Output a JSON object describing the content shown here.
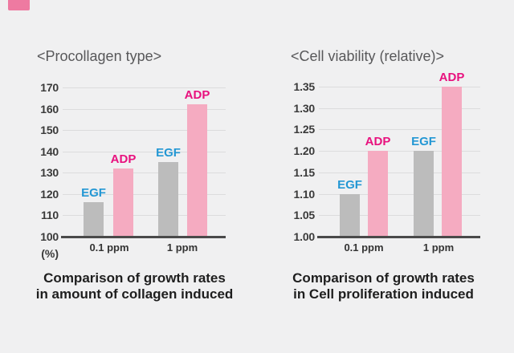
{
  "page": {
    "background_color": "#f0f0f1",
    "bookmark_color": "#ee7aa1"
  },
  "colors": {
    "grid_line": "#dcdcdd",
    "axis_line": "#4a4a4a",
    "tick_text": "#3a3a3a",
    "title_text": "#58585a",
    "caption_text": "#1e1e1e",
    "category_text": "#333333",
    "bar_gray": "#bcbcbc",
    "bar_pink": "#f5abc1",
    "egf_label": "#2397d4",
    "adp_label": "#e8117e"
  },
  "chart_data": [
    {
      "type": "bar",
      "title": "<Procollagen type>",
      "unit_label": "(%)",
      "categories": [
        "0.1 ppm",
        "1 ppm"
      ],
      "series": [
        {
          "name": "EGF",
          "values": [
            116,
            135
          ],
          "bar_color": "#bcbcbc",
          "label_color": "#2397d4"
        },
        {
          "name": "ADP",
          "values": [
            132,
            162
          ],
          "bar_color": "#f5abc1",
          "label_color": "#e8117e"
        }
      ],
      "ylim": [
        100,
        170
      ],
      "ytick_values": [
        100,
        110,
        120,
        130,
        140,
        150,
        160,
        170
      ],
      "ytick_labels": [
        "100",
        "110",
        "120",
        "130",
        "140",
        "150",
        "160",
        "170"
      ],
      "grid": true,
      "legend_position": "above-bars",
      "caption": [
        "Comparison of growth rates",
        "in amount of collagen induced"
      ]
    },
    {
      "type": "bar",
      "title": "<Cell viability (relative)>",
      "unit_label": "",
      "categories": [
        "0.1 ppm",
        "1 ppm"
      ],
      "series": [
        {
          "name": "EGF",
          "values": [
            1.1,
            1.2
          ],
          "bar_color": "#bcbcbc",
          "label_color": "#2397d4"
        },
        {
          "name": "ADP",
          "values": [
            1.2,
            1.35
          ],
          "bar_color": "#f5abc1",
          "label_color": "#e8117e"
        }
      ],
      "ylim": [
        1.0,
        1.35
      ],
      "ytick_values": [
        1.0,
        1.05,
        1.1,
        1.15,
        1.2,
        1.25,
        1.3,
        1.35
      ],
      "ytick_labels": [
        "1.00",
        "1.05",
        "1.10",
        "1.15",
        "1.20",
        "1.25",
        "1.30",
        "1.35"
      ],
      "grid": true,
      "legend_position": "above-bars",
      "caption": [
        "Comparison of growth rates",
        "in Cell proliferation induced"
      ]
    }
  ]
}
